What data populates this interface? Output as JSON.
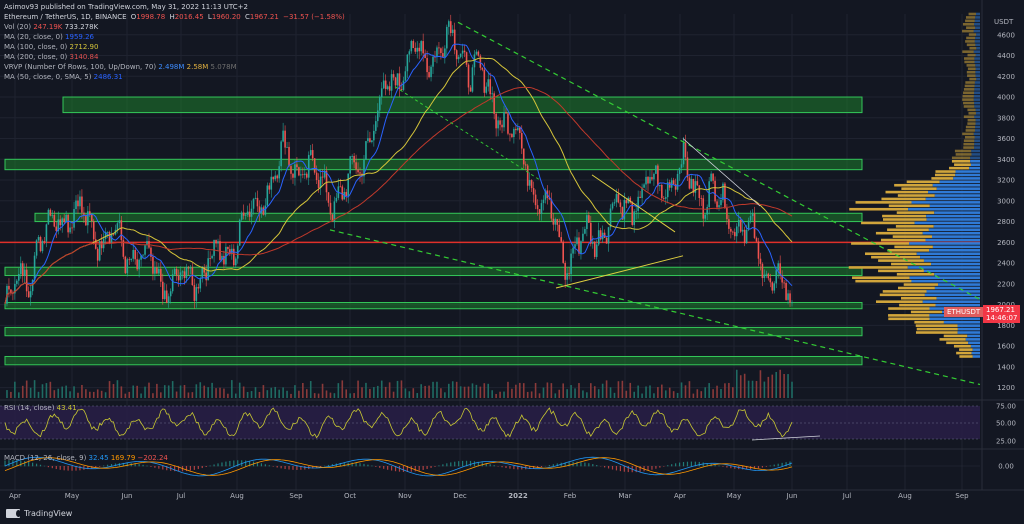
{
  "header": {
    "publish_line": "Asimov93 published on TradingView.com, May 31, 2022 11:13 UTC+2",
    "symbol_line": "Ethereum / TetherUS, 1D, BINANCE",
    "ohlc": {
      "o_label": "O",
      "o": "1998.78",
      "h_label": "H",
      "h": "2016.45",
      "l_label": "L",
      "l": "1960.20",
      "c_label": "C",
      "c": "1967.21",
      "chg": "−31.57 (−1.58%)"
    },
    "vol": {
      "label": "Vol (20)",
      "v1": "247.19K",
      "v2": "733.278K"
    },
    "ma20": {
      "label": "MA (20, close, 0)",
      "value": "1959.26"
    },
    "ma100": {
      "label": "MA (100, close, 0)",
      "value": "2712.90"
    },
    "ma200": {
      "label": "MA (200, close, 0)",
      "value": "3140.84"
    },
    "vrvp": {
      "label": "VRVP (Number Of Rows, 100, Up/Down, 70)",
      "v1": "2.498M",
      "v2": "2.58M",
      "v3": "5.078M"
    },
    "ma50": {
      "label": "MA (50, close, 0, SMA, 5)",
      "value": "2486.31"
    }
  },
  "colors": {
    "background": "#131722",
    "up": "#26a69a",
    "down": "#ef5350",
    "ma20": "#2962ff",
    "ma100": "#d4c43a",
    "ma200": "#c0392b",
    "zone_fill": "#1e7d2b",
    "zone_stroke": "#34c759",
    "trend": "#33cc33",
    "rsi_bg": "#2a1f4a",
    "rsi_line": "#c8c832",
    "macd": "#2196f3",
    "signal": "#ff9800"
  },
  "chart_data": {
    "type": "line",
    "title": "Ethereum / TetherUS, 1D, BINANCE",
    "xlabel": "",
    "ylabel": "USDT",
    "ylim": [
      1100,
      4800
    ],
    "price_ticks": [
      4600,
      4400,
      4200,
      4000,
      3800,
      3600,
      3400,
      3200,
      3000,
      2800,
      2600,
      2400,
      2200,
      2000,
      1800,
      1600,
      1400,
      1200
    ],
    "x_ticks": [
      "Apr",
      "May",
      "Jun",
      "Jul",
      "Aug",
      "Sep",
      "Oct",
      "Nov",
      "Dec",
      "2022",
      "Feb",
      "Mar",
      "Apr",
      "May",
      "Jun",
      "Jul",
      "Aug",
      "Sep"
    ],
    "price_close_approx": {
      "x": [
        "Apr",
        "May",
        "Jun",
        "Jul",
        "Aug",
        "Sep",
        "Oct",
        "Nov",
        "Dec",
        "2022",
        "Feb",
        "Mar",
        "Apr",
        "May",
        "Jun"
      ],
      "values": [
        1950,
        2950,
        2600,
        2150,
        2550,
        3450,
        3000,
        4300,
        4550,
        3700,
        2450,
        2950,
        3280,
        2850,
        1967
      ]
    },
    "last_price": "1967.21",
    "last_time": "14:46:07",
    "symbol_tag": "ETHUSDT",
    "support_zones": [
      [
        3850,
        4000
      ],
      [
        3300,
        3400
      ],
      [
        2800,
        2880
      ],
      [
        2280,
        2360
      ],
      [
        1960,
        2020
      ],
      [
        1700,
        1780
      ],
      [
        1420,
        1500
      ]
    ],
    "red_level": 2600,
    "rsi": {
      "label": "RSI (14, close)",
      "value": "43.41",
      "ticks": [
        "75.00",
        "50.00",
        "25.00"
      ]
    },
    "macd": {
      "label": "MACD (12, 26, close, 9)",
      "v1": "32.45",
      "v2": "169.79",
      "v3": "−202.24",
      "ticks": [
        "0.00"
      ]
    }
  }
}
